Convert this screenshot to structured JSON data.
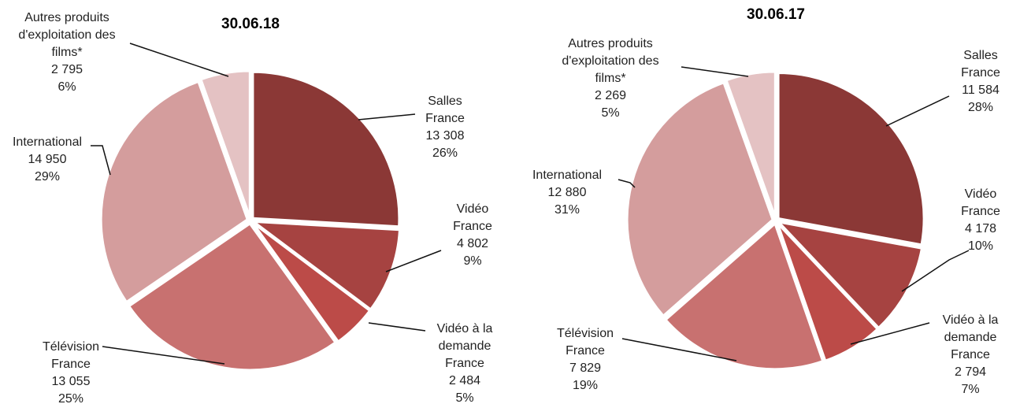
{
  "chart_data": [
    {
      "type": "pie",
      "title": "30.06.18",
      "categories": [
        "Salles France",
        "Vidéo France",
        "Vidéo à la demande France",
        "Télévision France",
        "International",
        "Autres produits d'exploitation des films*"
      ],
      "values": [
        13308,
        4802,
        2484,
        13055,
        14950,
        2795
      ],
      "value_labels": [
        "13 308",
        "4 802",
        "2 484",
        "13 055",
        "14 950",
        "2 795"
      ],
      "percentages": [
        26,
        9,
        5,
        25,
        29,
        6
      ],
      "percentage_labels": [
        "26%",
        "9%",
        "5%",
        "25%",
        "29%",
        "6%"
      ],
      "colors": [
        "#8b3836",
        "#a64341",
        "#bc4b48",
        "#c87170",
        "#d49d9d",
        "#e4c2c3"
      ]
    },
    {
      "type": "pie",
      "title": "30.06.17",
      "categories": [
        "Salles France",
        "Vidéo France",
        "Vidéo à la demande France",
        "Télévision France",
        "International",
        "Autres produits d'exploitation des films*"
      ],
      "values": [
        11584,
        4178,
        2794,
        7829,
        12880,
        2269
      ],
      "value_labels": [
        "11 584",
        "4 178",
        "2 794",
        "7 829",
        "12 880",
        "2 269"
      ],
      "percentages": [
        28,
        10,
        7,
        19,
        31,
        5
      ],
      "percentage_labels": [
        "28%",
        "10%",
        "7%",
        "19%",
        "31%",
        "5%"
      ],
      "colors": [
        "#8b3836",
        "#a64341",
        "#bc4b48",
        "#c87170",
        "#d49d9d",
        "#e4c2c3"
      ]
    }
  ]
}
